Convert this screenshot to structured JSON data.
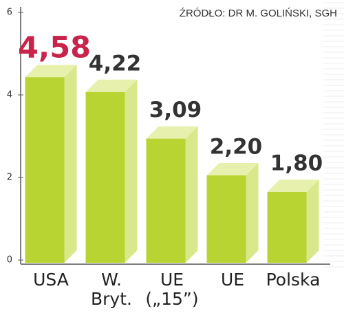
{
  "chart_data": {
    "type": "bar3d",
    "source": "ŹRÓDŁO: DR M. GOLIŃSKI, SGH",
    "categories": [
      [
        "USA"
      ],
      [
        "W.",
        "Bryt."
      ],
      [
        "UE",
        "(„15”)"
      ],
      [
        "UE"
      ],
      [
        "Polska"
      ]
    ],
    "values": [
      4.58,
      4.22,
      3.09,
      2.2,
      1.8
    ],
    "value_labels": [
      "4,58",
      "4,22",
      "3,09",
      "2,20",
      "1,80"
    ],
    "value_label_colors": [
      "#c8234b",
      "#333333",
      "#333333",
      "#333333",
      "#333333"
    ],
    "color": "#b8d432",
    "side_color": "#d9e88a",
    "top_color": "#e7f1ad",
    "ylim": [
      0,
      6
    ],
    "yticks": [
      0,
      2,
      4,
      6
    ]
  }
}
